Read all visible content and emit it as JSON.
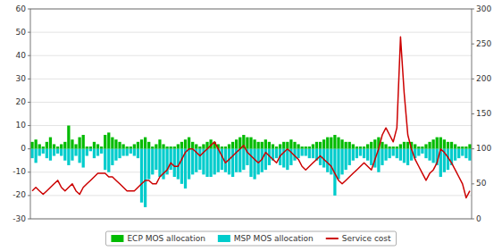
{
  "chart_data": {
    "type": "bar",
    "categories": [
      null,
      null,
      null,
      null,
      null,
      null,
      null,
      null,
      null,
      null,
      null,
      null,
      null,
      null,
      null,
      null,
      null,
      null,
      null,
      null,
      null,
      null,
      null,
      null,
      null,
      null,
      null,
      null,
      null,
      null,
      null,
      null,
      null,
      null,
      null,
      null,
      null,
      null,
      null,
      null,
      null,
      null,
      null,
      null,
      null,
      null,
      null,
      null,
      null,
      null,
      null,
      null,
      null,
      null,
      null,
      null,
      null,
      null,
      null,
      null,
      null,
      null,
      null,
      null,
      null,
      null,
      null,
      null,
      null,
      null,
      null,
      null,
      null,
      null,
      null,
      null,
      null,
      null,
      null,
      null,
      null,
      null,
      null,
      null,
      null,
      null,
      null,
      null,
      null,
      null,
      null,
      null,
      null,
      null,
      null,
      null,
      null,
      null,
      null,
      null,
      null,
      null,
      null,
      null,
      null,
      null,
      null,
      null,
      null,
      null,
      null,
      null,
      null,
      null,
      null,
      null,
      null,
      null,
      null,
      null,
      null
    ],
    "series": [
      {
        "name": "ECP MOS allocation",
        "type": "bar",
        "color": "#00BB00",
        "values": [
          3,
          4,
          2,
          1,
          3,
          5,
          2,
          1,
          2,
          3,
          10,
          4,
          2,
          5,
          6,
          1,
          1,
          3,
          2,
          1,
          6,
          7,
          5,
          4,
          3,
          2,
          1,
          1,
          2,
          3,
          4,
          5,
          3,
          1,
          2,
          4,
          2,
          1,
          1,
          1,
          2,
          3,
          4,
          5,
          3,
          2,
          1,
          2,
          3,
          4,
          3,
          2,
          1,
          1,
          2,
          3,
          4,
          5,
          6,
          5,
          5,
          4,
          3,
          3,
          4,
          3,
          2,
          1,
          2,
          3,
          3,
          4,
          3,
          2,
          1,
          1,
          1,
          2,
          3,
          3,
          4,
          5,
          5,
          6,
          5,
          4,
          3,
          3,
          2,
          1,
          1,
          1,
          2,
          3,
          4,
          5,
          3,
          2,
          1,
          1,
          1,
          2,
          3,
          3,
          3,
          2,
          1,
          1,
          2,
          3,
          4,
          5,
          5,
          4,
          3,
          3,
          2,
          1,
          1,
          1,
          2
        ]
      },
      {
        "name": "MSP MOS allocation",
        "type": "bar",
        "color": "#00CCCC",
        "values": [
          -4,
          -6,
          -3,
          -2,
          -4,
          -5,
          -3,
          -2,
          -3,
          -5,
          -7,
          -5,
          -3,
          -6,
          -8,
          -3,
          -1,
          -4,
          -3,
          -2,
          -9,
          -10,
          -7,
          -5,
          -4,
          -3,
          -3,
          -2,
          -3,
          -4,
          -23,
          -25,
          -13,
          -11,
          -9,
          -12,
          -13,
          -11,
          -9,
          -12,
          -13,
          -15,
          -17,
          -13,
          -11,
          -10,
          -9,
          -11,
          -12,
          -12,
          -11,
          -10,
          -9,
          -10,
          -11,
          -12,
          -10,
          -10,
          -9,
          -7,
          -12,
          -13,
          -11,
          -10,
          -9,
          -7,
          -5,
          -4,
          -7,
          -8,
          -9,
          -7,
          -5,
          -4,
          -3,
          -3,
          -4,
          -4,
          -5,
          -7,
          -8,
          -10,
          -11,
          -20,
          -13,
          -11,
          -9,
          -7,
          -5,
          -4,
          -3,
          -4,
          -5,
          -7,
          -8,
          -10,
          -7,
          -5,
          -4,
          -3,
          -4,
          -5,
          -6,
          -7,
          -5,
          -4,
          -3,
          -2,
          -4,
          -5,
          -6,
          -7,
          -12,
          -10,
          -9,
          -7,
          -5,
          -4,
          -3,
          -4,
          -5
        ]
      },
      {
        "name": "Service cost",
        "type": "line",
        "axis": "y2",
        "color": "#CC0000",
        "values": [
          40,
          45,
          40,
          35,
          40,
          45,
          50,
          55,
          45,
          40,
          45,
          50,
          40,
          35,
          45,
          50,
          55,
          60,
          65,
          65,
          65,
          60,
          60,
          55,
          50,
          45,
          40,
          40,
          40,
          45,
          50,
          55,
          55,
          50,
          50,
          60,
          65,
          70,
          80,
          75,
          75,
          85,
          95,
          100,
          100,
          95,
          90,
          95,
          100,
          105,
          110,
          100,
          90,
          80,
          85,
          90,
          95,
          100,
          105,
          95,
          90,
          85,
          80,
          85,
          95,
          90,
          85,
          80,
          90,
          95,
          100,
          95,
          90,
          85,
          75,
          70,
          75,
          80,
          85,
          90,
          85,
          80,
          75,
          65,
          55,
          50,
          55,
          60,
          65,
          70,
          75,
          80,
          75,
          70,
          85,
          100,
          120,
          130,
          120,
          110,
          130,
          260,
          180,
          120,
          100,
          85,
          75,
          65,
          55,
          65,
          70,
          80,
          100,
          95,
          88,
          80,
          70,
          60,
          50,
          30,
          40
        ]
      }
    ],
    "ylim": [
      -30,
      60
    ],
    "yticks": [
      -30,
      -20,
      -10,
      0,
      10,
      20,
      30,
      40,
      50,
      60
    ],
    "y2lim": [
      0,
      300
    ],
    "y2ticks": [
      0,
      50,
      100,
      150,
      200,
      250,
      300
    ],
    "grid": true,
    "legend": "bottom",
    "tick_labels": "y"
  }
}
